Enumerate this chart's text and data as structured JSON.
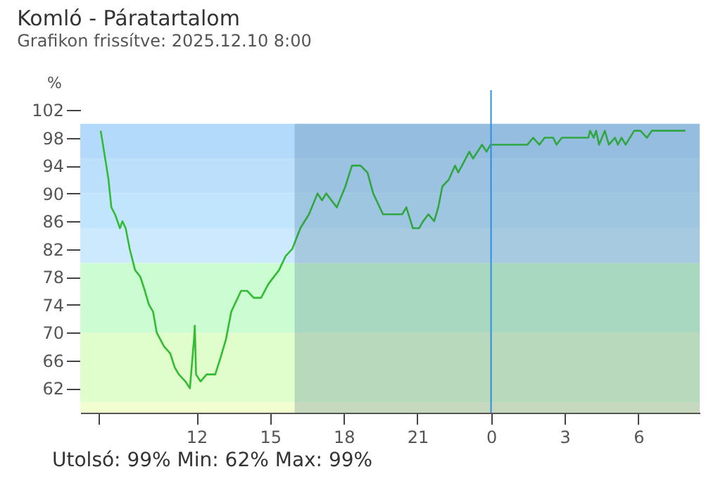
{
  "chart_data": {
    "type": "line",
    "title": "Komló - Páratartalom",
    "subtitle": "Grafikon frissítve: 2025.12.10 8:00",
    "ylabel": "%",
    "x": [
      "2025-12-09T08:06",
      "2025-12-09T08:17",
      "2025-12-09T08:25",
      "2025-12-09T08:32",
      "2025-12-09T08:41",
      "2025-12-09T08:53",
      "2025-12-09T08:59",
      "2025-12-09T09:07",
      "2025-12-09T09:17",
      "2025-12-09T09:30",
      "2025-12-09T09:43",
      "2025-12-09T09:54",
      "2025-12-09T10:04",
      "2025-12-09T10:14",
      "2025-12-09T10:23",
      "2025-12-09T10:41",
      "2025-12-09T10:56",
      "2025-12-09T11:07",
      "2025-12-09T11:17",
      "2025-12-09T11:33",
      "2025-12-09T11:44",
      "2025-12-09T11:54",
      "2025-12-09T11:56",
      "2025-12-09T11:59",
      "2025-12-09T12:10",
      "2025-12-09T12:25",
      "2025-12-09T12:46",
      "2025-12-09T13:02",
      "2025-12-09T13:12",
      "2025-12-09T13:25",
      "2025-12-09T13:49",
      "2025-12-09T14:04",
      "2025-12-09T14:20",
      "2025-12-09T14:38",
      "2025-12-09T14:56",
      "2025-12-09T15:22",
      "2025-12-09T15:38",
      "2025-12-09T15:54",
      "2025-12-09T16:14",
      "2025-12-09T16:35",
      "2025-12-09T16:56",
      "2025-12-09T17:07",
      "2025-12-09T17:17",
      "2025-12-09T17:43",
      "2025-12-09T18:04",
      "2025-12-09T18:20",
      "2025-12-09T18:41",
      "2025-12-09T18:58",
      "2025-12-09T19:12",
      "2025-12-09T19:28",
      "2025-12-09T19:36",
      "2025-12-09T20:23",
      "2025-12-09T20:33",
      "2025-12-09T20:49",
      "2025-12-09T21:04",
      "2025-12-09T21:14",
      "2025-12-09T21:27",
      "2025-12-09T21:41",
      "2025-12-09T21:51",
      "2025-12-09T22:01",
      "2025-12-09T22:17",
      "2025-12-09T22:32",
      "2025-12-09T22:40",
      "2025-12-09T23:07",
      "2025-12-09T23:16",
      "2025-12-09T23:38",
      "2025-12-09T23:49",
      "2025-12-09T23:59",
      "2025-12-10T01:29",
      "2025-12-10T01:43",
      "2025-12-10T01:58",
      "2025-12-10T02:11",
      "2025-12-10T02:32",
      "2025-12-10T02:40",
      "2025-12-10T02:53",
      "2025-12-10T03:58",
      "2025-12-10T04:02",
      "2025-12-10T04:11",
      "2025-12-10T04:17",
      "2025-12-10T04:24",
      "2025-12-10T04:38",
      "2025-12-10T04:48",
      "2025-12-10T05:03",
      "2025-12-10T05:10",
      "2025-12-10T05:19",
      "2025-12-10T05:29",
      "2025-12-10T05:50",
      "2025-12-10T06:05",
      "2025-12-10T06:21",
      "2025-12-10T06:33",
      "2025-12-10T07:55"
    ],
    "series": [
      {
        "color": "#33bb33",
        "values": [
          99,
          95,
          92,
          88,
          87,
          85,
          86,
          85,
          82,
          79,
          78,
          76,
          74,
          73,
          70,
          68,
          67,
          65,
          64,
          63,
          62,
          69,
          71,
          64,
          63,
          64,
          64,
          67,
          69,
          73,
          76,
          76,
          75,
          75,
          77,
          79,
          81,
          82,
          85,
          87,
          90,
          89,
          90,
          88,
          91,
          94,
          94,
          93,
          90,
          88,
          87,
          87,
          88,
          85,
          85,
          86,
          87,
          86,
          88,
          91,
          92,
          94,
          93,
          96,
          95,
          97,
          96,
          97,
          97,
          98,
          97,
          98,
          98,
          97,
          98,
          98,
          99,
          98,
          99,
          97,
          99,
          97,
          98,
          97,
          98,
          97,
          99,
          99,
          98,
          99,
          99
        ]
      }
    ],
    "xlim": [
      "2025-12-09T07:16",
      "2025-12-10T08:30"
    ],
    "xticks": [
      {
        "value": "2025-12-09T08:00",
        "label": null
      },
      {
        "value": "2025-12-09T12:00",
        "label": "12"
      },
      {
        "value": "2025-12-09T15:00",
        "label": "15"
      },
      {
        "value": "2025-12-09T18:00",
        "label": "18"
      },
      {
        "value": "2025-12-09T21:00",
        "label": "21"
      },
      {
        "value": "2025-12-10T00:00",
        "label": "0"
      },
      {
        "value": "2025-12-10T03:00",
        "label": "3"
      },
      {
        "value": "2025-12-10T06:00",
        "label": "6"
      }
    ],
    "ylim": [
      58.5,
      102
    ],
    "yticks": [
      62,
      66,
      70,
      74,
      78,
      82,
      86,
      90,
      94,
      98,
      102
    ],
    "bands": [
      {
        "axis": "y",
        "from": 95,
        "to": 100,
        "color": "#b3d9fb"
      },
      {
        "axis": "y",
        "from": 90,
        "to": 95,
        "color": "#bcdffb"
      },
      {
        "axis": "y",
        "from": 85,
        "to": 90,
        "color": "#c1e5fc"
      },
      {
        "axis": "y",
        "from": 80,
        "to": 85,
        "color": "#cce9fd"
      },
      {
        "axis": "y",
        "from": 70,
        "to": 80,
        "color": "#ccfcd2"
      },
      {
        "axis": "y",
        "from": 60,
        "to": 70,
        "color": "#e0fdcc"
      },
      {
        "axis": "y",
        "from": 58.5,
        "to": 60,
        "color": "#f2fdd0"
      },
      {
        "axis": "x",
        "from": "2025-12-09T16:00",
        "to": "2025-12-10T08:30",
        "color": "#2a5a80"
      }
    ],
    "ref_lines": [
      {
        "axis": "x",
        "value": "2025-12-10T00:00",
        "color": "#2b8fe0"
      }
    ],
    "annotations": [
      "Utolsó: 99%  Min: 62%  Max: 99%"
    ],
    "grid": false,
    "marker": "none",
    "line_style": "solid"
  }
}
